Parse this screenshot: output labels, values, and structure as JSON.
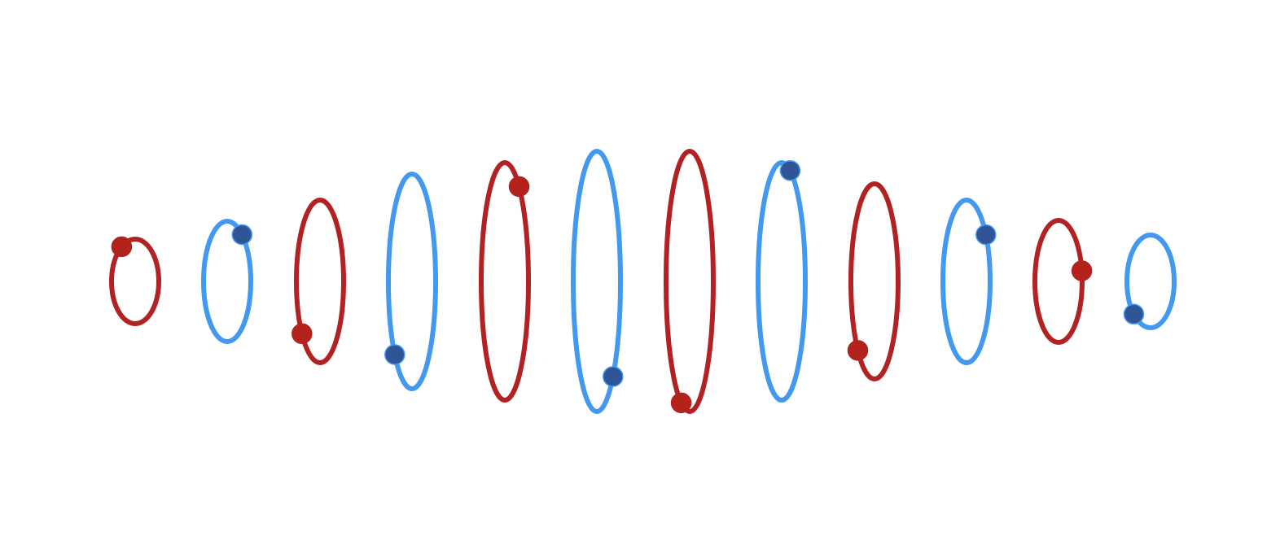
{
  "colors": {
    "background": "#ffffff",
    "ring_red": "#b22222",
    "ring_blue": "#4399f0",
    "dot_red": "#b3231c",
    "dot_blue": "#2f5597"
  },
  "rings": [
    {
      "color": "red",
      "dot_angle_deg": -125
    },
    {
      "color": "blue",
      "dot_angle_deg": -51
    },
    {
      "color": "red",
      "dot_angle_deg": 140
    },
    {
      "color": "blue",
      "dot_angle_deg": 137
    },
    {
      "color": "red",
      "dot_angle_deg": -53
    },
    {
      "color": "blue",
      "dot_angle_deg": 47
    },
    {
      "color": "red",
      "dot_angle_deg": 111
    },
    {
      "color": "blue",
      "dot_angle_deg": -69
    },
    {
      "color": "red",
      "dot_angle_deg": 135
    },
    {
      "color": "blue",
      "dot_angle_deg": -35
    },
    {
      "color": "red",
      "dot_angle_deg": -10
    },
    {
      "color": "blue",
      "dot_angle_deg": 135
    }
  ]
}
